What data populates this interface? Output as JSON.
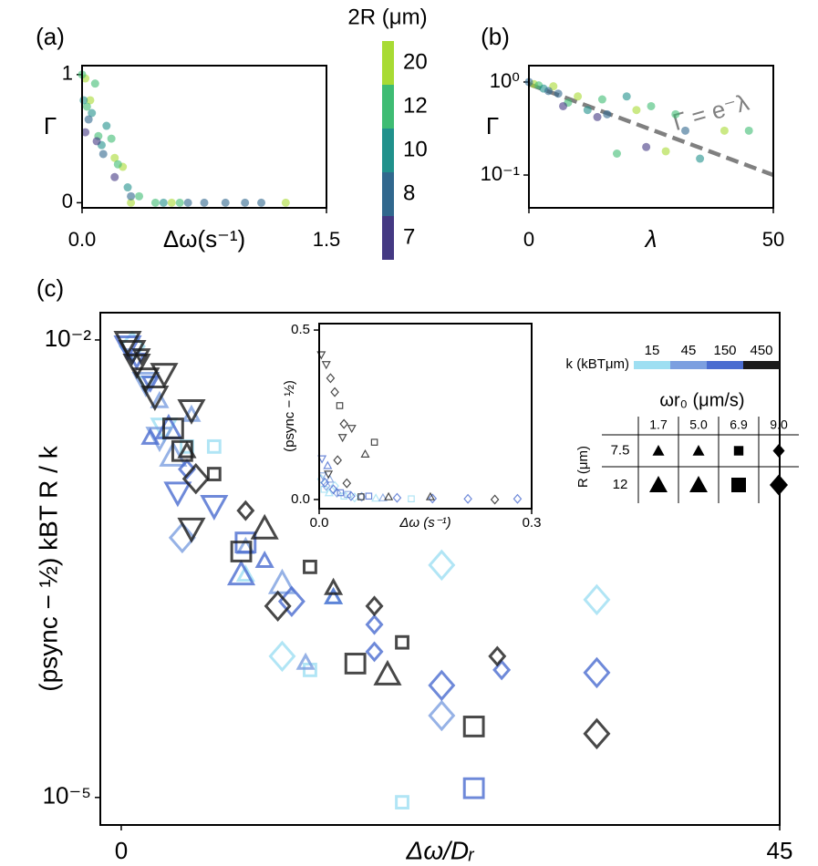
{
  "chart_data": [
    {
      "type": "scatter",
      "panel_label": "(a)",
      "xlabel": "Δω(s⁻¹)",
      "ylabel": "Γ",
      "xlim": [
        0,
        1.5
      ],
      "ylim": [
        -0.04,
        1.07
      ],
      "xticks": [
        {
          "value": 0,
          "label": "0.0"
        },
        1.5
      ],
      "yticks": [
        0,
        1
      ],
      "colorbar": {
        "title": "2R (μm)"
      },
      "series": [
        {
          "name": 20,
          "color": "#a8db34",
          "x": [
            0.02,
            0.05,
            0.25,
            0.3,
            0.55,
            1.25,
            0.2
          ],
          "values": [
            0.97,
            0.8,
            0.28,
            0.0,
            0.0,
            0.0,
            0.35
          ]
        },
        {
          "name": 12,
          "color": "#3fbc73",
          "x": [
            0.0,
            0.03,
            0.1,
            0.18,
            0.35,
            0.45,
            0.6,
            0.22,
            0.08
          ],
          "values": [
            1.0,
            0.75,
            0.52,
            0.5,
            0.05,
            0.0,
            0.0,
            0.3,
            0.93
          ]
        },
        {
          "name": 10,
          "color": "#21918c",
          "x": [
            0.01,
            0.06,
            0.15,
            0.28,
            0.5,
            0.12
          ],
          "values": [
            0.8,
            0.7,
            0.6,
            0.12,
            0.0,
            0.45
          ]
        },
        {
          "name": 8,
          "color": "#31688e",
          "x": [
            0.04,
            0.13,
            0.3,
            0.75,
            0.88,
            1.0,
            1.1,
            0.65
          ],
          "values": [
            0.65,
            0.38,
            0.05,
            0.0,
            0.0,
            0.0,
            0.0,
            0.0
          ]
        },
        {
          "name": 7,
          "color": "#443983",
          "x": [
            0.02,
            0.09,
            0.2
          ],
          "values": [
            0.55,
            0.48,
            0.2
          ]
        }
      ]
    },
    {
      "type": "scatter",
      "panel_label": "(b)",
      "xlabel": "λ",
      "ylabel": "Γ",
      "log_y": true,
      "xlim": [
        0,
        50
      ],
      "ylim": [
        0.0444,
        1.5
      ],
      "xticks": [
        0,
        50
      ],
      "yticks": [
        {
          "value": 0.1,
          "label": "10⁻¹"
        },
        {
          "value": 1,
          "label": "10⁰"
        }
      ],
      "fit_line": {
        "label": "Γ = e⁻λ",
        "color": "#808080",
        "x": [
          0,
          50
        ],
        "values": [
          0.95,
          0.1
        ]
      },
      "series": [
        {
          "color": "#a8db34",
          "x": [
            1,
            10,
            22,
            40,
            5,
            28
          ],
          "values": [
            0.95,
            0.7,
            0.5,
            0.3,
            0.9,
            0.18
          ]
        },
        {
          "color": "#3fbc73",
          "x": [
            2,
            8,
            15,
            25,
            30,
            45,
            18
          ],
          "values": [
            0.92,
            0.6,
            0.65,
            0.55,
            0.45,
            0.3,
            0.17
          ]
        },
        {
          "color": "#21918c",
          "x": [
            3,
            12,
            35,
            20
          ],
          "values": [
            0.85,
            0.5,
            0.15,
            0.7
          ]
        },
        {
          "color": "#31688e",
          "x": [
            0,
            4,
            6,
            16,
            32
          ],
          "values": [
            1.0,
            0.8,
            0.75,
            0.45,
            0.3
          ]
        },
        {
          "color": "#443983",
          "x": [
            7,
            24,
            14
          ],
          "values": [
            0.55,
            0.2,
            0.42
          ]
        }
      ]
    },
    {
      "type": "marker-scatter",
      "panel_label": "(c)",
      "xlabel": "Δω/Dᵣ",
      "ylabel": "(psync − ½) kBT R / k",
      "log_y": true,
      "xlim": [
        -1.43,
        45
      ],
      "ylim": [
        6.6e-06,
        0.0151
      ],
      "xticks": [
        0,
        45
      ],
      "yticks": [
        {
          "value": 1e-05,
          "label": "10⁻⁵"
        },
        {
          "value": 0.01,
          "label": "10⁻²"
        }
      ],
      "colorbar": {
        "title": "k (kBTμm)"
      },
      "marker_legend": {
        "title": "ωr₀ (μm/s)",
        "row_title": "R (μm)",
        "columns": [
          "1.7",
          "5.0",
          "6.9",
          "9.0"
        ],
        "rows": [
          "7.5",
          "12"
        ],
        "markers": [
          "triangle",
          "triangle",
          "square",
          "diamond"
        ]
      },
      "series": [
        {
          "name": 15,
          "color": "#9edff2",
          "x": [
            0.75,
            1.68,
            2.93,
            4.49,
            6.35,
            8.5,
            11.0,
            12.9,
            21.9,
            32.5,
            19.2,
            14.5
          ],
          "values": [
            0.00908,
            0.00524,
            0.00263,
            0.002,
            0.002,
            0.00029,
            8.43e-05,
            6.86e-05,
            0.000334,
            0.000198,
            9.3e-06,
            0.000206
          ],
          "markers": [
            "diamond",
            "triangle-down",
            "triangle-down",
            "square",
            "square",
            "triangle",
            "diamond",
            "square",
            "diamond",
            "diamond",
            "square",
            "triangle"
          ],
          "large": [
            true,
            false,
            true,
            false,
            false,
            false,
            true,
            false,
            true,
            true,
            false,
            false
          ]
        },
        {
          "name": 45,
          "color": "#7c9fe0",
          "x": [
            0.75,
            1.68,
            2.62,
            4.8,
            3.55,
            4.17,
            8.5,
            11.0,
            12.6,
            21.9,
            2.62
          ],
          "values": [
            0.0079,
            0.00524,
            0.00398,
            0.00324,
            0.00174,
            0.000505,
            0.00044,
            0.000254,
            7.66e-05,
            3.44e-05,
            0.00229
          ],
          "markers": [
            "triangle-down",
            "triangle-down",
            "triangle",
            "triangle",
            "triangle",
            "diamond",
            "triangle",
            "triangle",
            "triangle",
            "diamond",
            "triangle-down"
          ],
          "large": [
            false,
            true,
            false,
            false,
            true,
            true,
            false,
            true,
            false,
            true,
            true
          ]
        },
        {
          "name": 150,
          "color": "#4a6cd0",
          "x": [
            0.44,
            1.06,
            1.99,
            3.24,
            3.86,
            4.49,
            8.5,
            8.2,
            9.8,
            11.65,
            14.5,
            17.3,
            17.3,
            21.9,
            26.0,
            32.5,
            24.1,
            1.99,
            6.35
          ],
          "values": [
            0.00908,
            0.0074,
            0.00524,
            0.00263,
            0.001,
            0.00142,
            0.00047,
            0.00029,
            0.000357,
            0.000193,
            0.000206,
            0.000136,
            9.03e-05,
            5.43e-05,
            6.86e-05,
            6.58e-05,
            1.15e-05,
            0.00229,
            0.000817
          ],
          "markers": [
            "triangle-down",
            "triangle-down",
            "triangle-down",
            "triangle",
            "triangle-down",
            "diamond",
            "square",
            "triangle",
            "triangle",
            "diamond",
            "triangle",
            "diamond",
            "diamond",
            "diamond",
            "diamond",
            "diamond",
            "square",
            "triangle",
            "triangle-down"
          ],
          "large": [
            true,
            false,
            false,
            true,
            true,
            false,
            true,
            true,
            false,
            true,
            false,
            false,
            false,
            true,
            false,
            true,
            true,
            false,
            true
          ]
        },
        {
          "name": 450,
          "color": "#1a1a1a",
          "x": [
            0.44,
            0.75,
            1.06,
            1.37,
            1.68,
            2.3,
            2.93,
            3.55,
            4.17,
            4.8,
            4.49,
            5.1,
            6.35,
            4.8,
            8.2,
            8.5,
            9.8,
            10.7,
            12.9,
            14.5,
            17.3,
            16.0,
            18.2,
            19.2,
            25.7,
            24.1,
            32.5
          ],
          "values": [
            0.00973,
            0.00848,
            0.0069,
            0.0079,
            0.0056,
            0.00426,
            0.006,
            0.00263,
            0.00187,
            0.00347,
            0.00187,
            0.00123,
            0.00132,
            0.00058,
            0.00041,
            0.00076,
            0.00058,
            0.00018,
            0.000325,
            0.000237,
            0.00018,
            7.55e-05,
            6.4e-05,
            0.000104,
            8.43e-05,
            2.92e-05,
            2.62e-05
          ],
          "markers": [
            "triangle-down",
            "triangle-down",
            "triangle-down",
            "triangle-down",
            "triangle-down",
            "triangle-down",
            "triangle-down",
            "square",
            "square",
            "triangle-down",
            "triangle",
            "diamond",
            "square",
            "triangle-down",
            "square",
            "diamond",
            "triangle",
            "diamond",
            "square",
            "triangle",
            "diamond",
            "square",
            "triangle",
            "square",
            "diamond",
            "square",
            "diamond"
          ],
          "large": [
            true,
            true,
            true,
            false,
            true,
            true,
            true,
            true,
            true,
            true,
            false,
            true,
            false,
            true,
            true,
            false,
            true,
            true,
            false,
            false,
            false,
            true,
            true,
            false,
            false,
            true,
            true
          ]
        }
      ]
    },
    {
      "type": "marker-scatter",
      "xlabel": "Δω (s⁻¹)",
      "ylabel": "(psync − ½)",
      "xlim": [
        0,
        0.3
      ],
      "ylim": [
        -0.027,
        0.519
      ],
      "xticks": [
        {
          "value": 0,
          "label": "0.0"
        },
        0.3
      ],
      "yticks": [
        {
          "value": 0,
          "label": "0.0"
        },
        0.5
      ],
      "series": [
        {
          "color": "#9edff2",
          "x": [
            0.003,
            0.007,
            0.014,
            0.022,
            0.035,
            0.05,
            0.08,
            0.13
          ],
          "values": [
            0.06,
            0.03,
            0.02,
            0.04,
            0.01,
            0.006,
            0.004,
            0.002
          ],
          "markers": [
            "diamond",
            "square",
            "triangle",
            "diamond",
            "square",
            "diamond",
            "triangle",
            "square"
          ]
        },
        {
          "color": "#7c9fe0",
          "x": [
            0.005,
            0.01,
            0.015,
            0.025,
            0.04,
            0.06,
            0.09
          ],
          "values": [
            0.07,
            0.04,
            0.06,
            0.02,
            0.015,
            0.008,
            0.005
          ],
          "markers": [
            "triangle-down",
            "diamond",
            "triangle",
            "diamond",
            "square",
            "diamond",
            "triangle"
          ]
        },
        {
          "color": "#4a6cd0",
          "x": [
            0.004,
            0.008,
            0.012,
            0.02,
            0.03,
            0.045,
            0.07,
            0.11,
            0.16,
            0.21,
            0.28
          ],
          "values": [
            0.12,
            0.05,
            0.1,
            0.03,
            0.02,
            0.01,
            0.01,
            0.005,
            0.003,
            0.002,
            0.002
          ],
          "markers": [
            "triangle-down",
            "diamond",
            "triangle",
            "diamond",
            "square",
            "diamond",
            "square",
            "diamond",
            "diamond",
            "diamond",
            "diamond"
          ]
        },
        {
          "color": "#1a1a1a",
          "x": [
            0.003,
            0.01,
            0.016,
            0.022,
            0.029,
            0.035,
            0.033,
            0.046,
            0.065,
            0.078,
            0.026,
            0.013,
            0.039,
            0.059,
            0.098,
            0.157,
            0.248
          ],
          "values": [
            0.427,
            0.398,
            0.358,
            0.317,
            0.277,
            0.223,
            0.183,
            0.21,
            0.134,
            0.169,
            0.116,
            0.075,
            0.048,
            0.008,
            0.008,
            0.008,
            0.0
          ],
          "markers": [
            "triangle-down",
            "triangle-down",
            "diamond",
            "diamond",
            "square",
            "diamond",
            "triangle-down",
            "triangle-down",
            "triangle",
            "square",
            "diamond",
            "triangle-down",
            "diamond",
            "square",
            "triangle",
            "triangle",
            "diamond"
          ]
        }
      ]
    }
  ]
}
